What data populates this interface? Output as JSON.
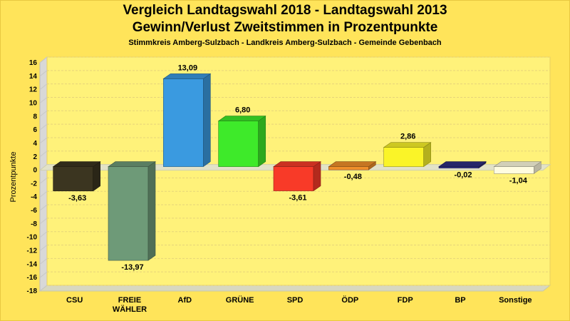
{
  "header": {
    "title_line1": "Vergleich Landtagswahl 2018 - Landtagswahl 2013",
    "title_line2": "Gewinn/Verlust Zweitstimmen in Prozentpunkte",
    "subtitle": "Stimmkreis Amberg-Sulzbach - Landkreis Amberg-Sulzbach - Gemeinde Gebenbach"
  },
  "chart_data": {
    "type": "bar",
    "title": "Vergleich Landtagswahl 2018 - Landtagswahl 2013 / Gewinn/Verlust Zweitstimmen in Prozentpunkte",
    "subtitle": "Stimmkreis Amberg-Sulzbach - Landkreis Amberg-Sulzbach - Gemeinde Gebenbach",
    "xlabel": "",
    "ylabel": "Prozentpunkte",
    "ylim": [
      -18,
      16
    ],
    "ytick_step": 2,
    "categories": [
      [
        "CSU"
      ],
      [
        "FREIE",
        "WÄHLER"
      ],
      [
        "AfD"
      ],
      [
        "GRÜNE"
      ],
      [
        "SPD"
      ],
      [
        "ÖDP"
      ],
      [
        "FDP"
      ],
      [
        "BP"
      ],
      [
        "Sonstige"
      ]
    ],
    "values": [
      -3.63,
      -13.97,
      13.09,
      6.8,
      -3.61,
      -0.48,
      2.86,
      -0.02,
      -1.04
    ],
    "labels": [
      "-3,63",
      "-13,97",
      "13,09",
      "6,80",
      "-3,61",
      "-0,48",
      "2,86",
      "-0,02",
      "-1,04"
    ],
    "colors": [
      "#3B3520",
      "#6E9A78",
      "#3A9AE0",
      "#3EEA2A",
      "#F83A28",
      "#F0902A",
      "#FAF428",
      "#2E2E80",
      "#FFFCE0"
    ]
  },
  "style": {
    "background": "#FFE45A",
    "plot_background": "#FFF27A",
    "wall_side": "#D8D8D8",
    "floor": "#D8D8C0"
  }
}
